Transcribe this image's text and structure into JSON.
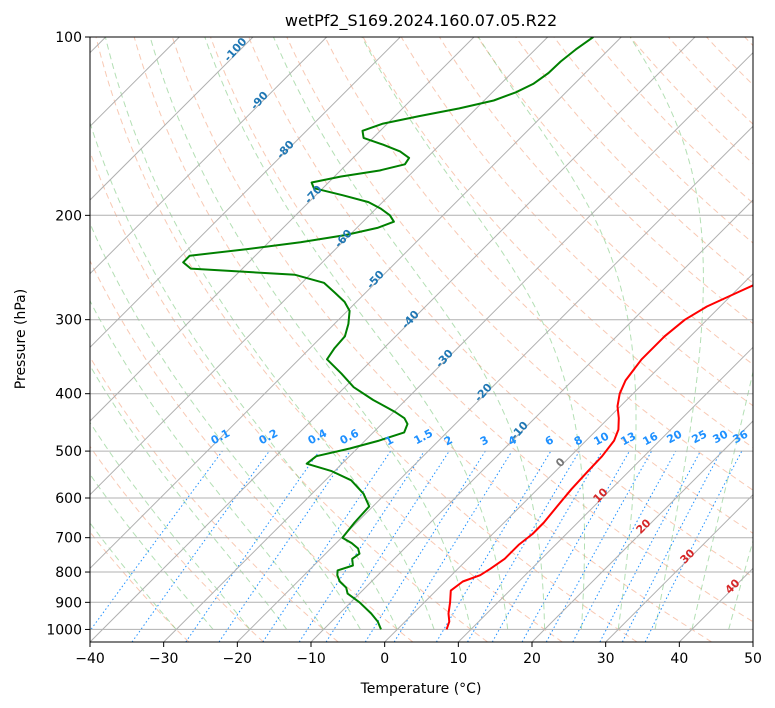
{
  "chart_data": {
    "type": "line",
    "title": "wetPf2_S169.2024.160.07.05.R22",
    "xlabel": "Temperature (°C)",
    "ylabel": "Pressure (hPa)",
    "xlim": [
      -40,
      50
    ],
    "ylim": [
      1050,
      100
    ],
    "yscale": "log",
    "x_ticks": [
      -40,
      -30,
      -20,
      -10,
      0,
      10,
      20,
      30,
      40,
      50
    ],
    "x_tick_labels": [
      "−40",
      "−30",
      "−20",
      "−10",
      "0",
      "10",
      "20",
      "30",
      "40",
      "50"
    ],
    "y_ticks": [
      100,
      200,
      300,
      400,
      500,
      600,
      700,
      800,
      900,
      1000
    ],
    "y_tick_labels": [
      "100",
      "200",
      "300",
      "400",
      "500",
      "600",
      "700",
      "800",
      "900",
      "1000"
    ],
    "grid": true,
    "colors": {
      "temperature": "#ff0000",
      "dewpoint": "#008000",
      "dry_adiabat_label": "#1f77b4",
      "mixing_ratio_label": "#1e90ff",
      "isotherm_label": "#d62728",
      "zero_label": "#777777"
    },
    "series": [
      {
        "key": "temperature",
        "pressure": [
          1000,
          970,
          940,
          900,
          860,
          830,
          810,
          790,
          760,
          720,
          690,
          660,
          620,
          580,
          540,
          510,
          480,
          460,
          440,
          420,
          400,
          380,
          350,
          320,
          300,
          285,
          270,
          255,
          245,
          235,
          225,
          210,
          200,
          190,
          180,
          170,
          160,
          150,
          140,
          130,
          120,
          110,
          100
        ],
        "temperature": [
          6.7,
          6.0,
          4.8,
          3.5,
          2.0,
          2.4,
          3.9,
          4.4,
          5.0,
          5.0,
          5.4,
          5.4,
          5.0,
          4.6,
          4.4,
          4.3,
          3.8,
          2.9,
          1.4,
          -0.4,
          -1.8,
          -2.8,
          -3.5,
          -3.5,
          -3.0,
          -1.8,
          0.4,
          2.8,
          4.5,
          5.8,
          6.5,
          6.9,
          6.9,
          7.3,
          8.0,
          8.6,
          9.2,
          10.8,
          12.0,
          13.3,
          14.8,
          16.6,
          18.7
        ]
      },
      {
        "key": "dewpoint",
        "pressure": [
          1000,
          970,
          940,
          900,
          870,
          850,
          830,
          810,
          795,
          780,
          760,
          745,
          730,
          715,
          700,
          660,
          620,
          590,
          560,
          540,
          525,
          510,
          495,
          480,
          465,
          450,
          440,
          430,
          420,
          410,
          390,
          370,
          350,
          335,
          320,
          305,
          290,
          280,
          270,
          260,
          252,
          246,
          240,
          234,
          228,
          222,
          216,
          210,
          205,
          200,
          195,
          190,
          185,
          180,
          176,
          172,
          168,
          164,
          160,
          156,
          152,
          148,
          144,
          140,
          136,
          132,
          128,
          124,
          120,
          115,
          110,
          105,
          100
        ],
        "temperature": [
          -2.2,
          -3.7,
          -5.7,
          -8.8,
          -11.6,
          -12.6,
          -14.3,
          -15.5,
          -16.1,
          -14.7,
          -15.7,
          -15.4,
          -16.3,
          -17.9,
          -19.9,
          -20.3,
          -20.5,
          -23.0,
          -26.5,
          -30.5,
          -34.8,
          -34.5,
          -31.0,
          -28.1,
          -25.8,
          -26.5,
          -27.7,
          -29.7,
          -32.0,
          -34.4,
          -38.8,
          -42.3,
          -46.2,
          -46.7,
          -46.9,
          -48.1,
          -49.7,
          -51.6,
          -54.2,
          -57.0,
          -62.0,
          -77.0,
          -78.9,
          -78.9,
          -72.0,
          -65.7,
          -60.6,
          -57.2,
          -55.8,
          -57.2,
          -59.3,
          -61.9,
          -66.3,
          -71.2,
          -72.3,
          -69.1,
          -64.7,
          -62.1,
          -62.4,
          -64.5,
          -67.7,
          -71.3,
          -72.4,
          -70.6,
          -66.7,
          -62.3,
          -58.7,
          -56.8,
          -55.6,
          -55.0,
          -54.9,
          -54.5,
          -53.8
        ]
      }
    ],
    "dry_adiabat_labels": [
      "-100",
      "-90",
      "-80",
      "-70",
      "-60",
      "-50",
      "-40",
      "-30",
      "-20",
      "-10"
    ],
    "mixing_ratio_labels": [
      "0.1",
      "0.2",
      "0.4",
      "0.6",
      "1",
      "1.5",
      "2",
      "3",
      "4",
      "6",
      "8",
      "10",
      "13",
      "16",
      "20",
      "25",
      "30",
      "36"
    ],
    "moist_adiabat_labels": [
      "0",
      "10",
      "20",
      "30",
      "40"
    ]
  }
}
